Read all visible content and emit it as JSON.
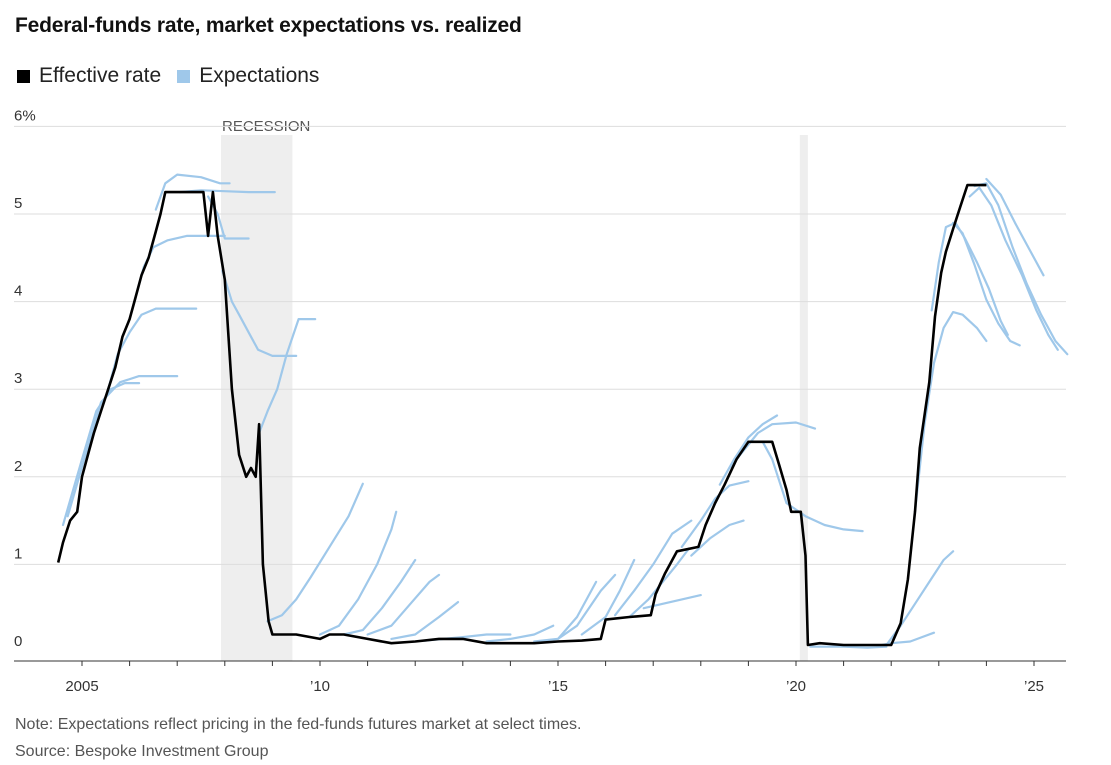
{
  "colors": {
    "effective": "#000000",
    "expectations": "#9fc8ea",
    "recession": "#eeeeee",
    "grid": "#dddddd"
  },
  "chart_data": {
    "type": "line",
    "title": "Federal-funds rate, market expectations vs. realized",
    "legend": [
      {
        "name": "Effective rate",
        "color": "#000000"
      },
      {
        "name": "Expectations",
        "color": "#9fc8ea"
      }
    ],
    "ylim": [
      0,
      6
    ],
    "xlim": [
      2004.0,
      2026.0
    ],
    "y_ticks": [
      0,
      1,
      2,
      3,
      4,
      5,
      6
    ],
    "y_tick_labels": [
      "0",
      "1",
      "2",
      "3",
      "4",
      "5",
      "6%"
    ],
    "x_ticks": [
      2005,
      2010,
      2015,
      2020,
      2025
    ],
    "x_tick_labels": [
      "2005",
      "’10",
      "’15",
      "’20",
      "’25"
    ],
    "recessions": [
      {
        "label": "RECESSION",
        "start": 2007.92,
        "end": 2009.42
      },
      {
        "label": "",
        "start": 2020.08,
        "end": 2020.25
      }
    ],
    "effective_rate": [
      [
        2004.5,
        1.02
      ],
      [
        2004.6,
        1.25
      ],
      [
        2004.75,
        1.5
      ],
      [
        2004.9,
        1.6
      ],
      [
        2005.0,
        2.0
      ],
      [
        2005.15,
        2.3
      ],
      [
        2005.25,
        2.5
      ],
      [
        2005.4,
        2.75
      ],
      [
        2005.55,
        3.0
      ],
      [
        2005.7,
        3.25
      ],
      [
        2005.85,
        3.6
      ],
      [
        2006.0,
        3.8
      ],
      [
        2006.1,
        4.0
      ],
      [
        2006.25,
        4.3
      ],
      [
        2006.4,
        4.5
      ],
      [
        2006.55,
        4.8
      ],
      [
        2006.65,
        5.0
      ],
      [
        2006.75,
        5.25
      ],
      [
        2007.0,
        5.25
      ],
      [
        2007.3,
        5.25
      ],
      [
        2007.55,
        5.25
      ],
      [
        2007.65,
        4.75
      ],
      [
        2007.75,
        5.25
      ],
      [
        2007.85,
        4.75
      ],
      [
        2008.0,
        4.25
      ],
      [
        2008.15,
        3.0
      ],
      [
        2008.3,
        2.25
      ],
      [
        2008.45,
        2.0
      ],
      [
        2008.55,
        2.1
      ],
      [
        2008.65,
        2.0
      ],
      [
        2008.72,
        2.6
      ],
      [
        2008.8,
        1.0
      ],
      [
        2008.92,
        0.35
      ],
      [
        2009.0,
        0.2
      ],
      [
        2009.5,
        0.2
      ],
      [
        2010.0,
        0.15
      ],
      [
        2010.2,
        0.2
      ],
      [
        2010.5,
        0.2
      ],
      [
        2011.0,
        0.15
      ],
      [
        2011.5,
        0.1
      ],
      [
        2012.0,
        0.12
      ],
      [
        2012.5,
        0.15
      ],
      [
        2013.0,
        0.15
      ],
      [
        2013.5,
        0.1
      ],
      [
        2014.0,
        0.1
      ],
      [
        2014.5,
        0.1
      ],
      [
        2015.0,
        0.12
      ],
      [
        2015.5,
        0.13
      ],
      [
        2015.9,
        0.15
      ],
      [
        2016.0,
        0.37
      ],
      [
        2016.5,
        0.4
      ],
      [
        2016.95,
        0.42
      ],
      [
        2017.05,
        0.66
      ],
      [
        2017.25,
        0.9
      ],
      [
        2017.5,
        1.15
      ],
      [
        2017.95,
        1.2
      ],
      [
        2018.1,
        1.45
      ],
      [
        2018.3,
        1.7
      ],
      [
        2018.5,
        1.91
      ],
      [
        2018.75,
        2.2
      ],
      [
        2019.0,
        2.4
      ],
      [
        2019.5,
        2.4
      ],
      [
        2019.65,
        2.13
      ],
      [
        2019.8,
        1.85
      ],
      [
        2019.9,
        1.6
      ],
      [
        2020.1,
        1.6
      ],
      [
        2020.2,
        1.1
      ],
      [
        2020.25,
        0.08
      ],
      [
        2020.5,
        0.1
      ],
      [
        2021.0,
        0.08
      ],
      [
        2021.5,
        0.08
      ],
      [
        2022.0,
        0.08
      ],
      [
        2022.2,
        0.33
      ],
      [
        2022.35,
        0.83
      ],
      [
        2022.5,
        1.6
      ],
      [
        2022.6,
        2.33
      ],
      [
        2022.8,
        3.08
      ],
      [
        2022.92,
        3.83
      ],
      [
        2023.05,
        4.33
      ],
      [
        2023.15,
        4.57
      ],
      [
        2023.3,
        4.83
      ],
      [
        2023.45,
        5.08
      ],
      [
        2023.6,
        5.33
      ],
      [
        2024.0,
        5.33
      ]
    ],
    "expectations": [
      [
        [
          2004.6,
          1.45
        ],
        [
          2005.0,
          2.2
        ],
        [
          2005.3,
          2.75
        ],
        [
          2005.6,
          3.0
        ],
        [
          2005.9,
          3.07
        ],
        [
          2006.2,
          3.07
        ]
      ],
      [
        [
          2004.7,
          1.55
        ],
        [
          2005.1,
          2.3
        ],
        [
          2005.4,
          2.85
        ],
        [
          2005.8,
          3.08
        ],
        [
          2006.2,
          3.15
        ],
        [
          2007.0,
          3.15
        ]
      ],
      [
        [
          2005.55,
          3.0
        ],
        [
          2005.75,
          3.4
        ],
        [
          2006.0,
          3.65
        ],
        [
          2006.25,
          3.85
        ],
        [
          2006.55,
          3.92
        ],
        [
          2007.4,
          3.92
        ]
      ],
      [
        [
          2006.1,
          4.0
        ],
        [
          2006.3,
          4.4
        ],
        [
          2006.5,
          4.62
        ],
        [
          2006.8,
          4.7
        ],
        [
          2007.2,
          4.75
        ],
        [
          2008.0,
          4.75
        ]
      ],
      [
        [
          2006.55,
          5.05
        ],
        [
          2006.75,
          5.35
        ],
        [
          2007.0,
          5.45
        ],
        [
          2007.5,
          5.42
        ],
        [
          2007.9,
          5.35
        ],
        [
          2008.1,
          5.35
        ]
      ],
      [
        [
          2007.05,
          5.25
        ],
        [
          2007.5,
          5.27
        ],
        [
          2008.0,
          5.26
        ],
        [
          2008.5,
          5.25
        ],
        [
          2009.05,
          5.25
        ]
      ],
      [
        [
          2007.65,
          5.2
        ],
        [
          2007.85,
          5.0
        ],
        [
          2008.0,
          4.72
        ],
        [
          2008.5,
          4.72
        ]
      ],
      [
        [
          2007.95,
          4.35
        ],
        [
          2008.15,
          4.0
        ],
        [
          2008.3,
          3.85
        ],
        [
          2008.5,
          3.65
        ],
        [
          2008.7,
          3.45
        ],
        [
          2009.0,
          3.38
        ],
        [
          2009.5,
          3.38
        ]
      ],
      [
        [
          2008.72,
          2.5
        ],
        [
          2008.9,
          2.75
        ],
        [
          2009.1,
          3.0
        ],
        [
          2009.3,
          3.4
        ],
        [
          2009.55,
          3.8
        ],
        [
          2009.9,
          3.8
        ]
      ],
      [
        [
          2008.9,
          0.35
        ],
        [
          2009.2,
          0.42
        ],
        [
          2009.5,
          0.6
        ],
        [
          2009.8,
          0.85
        ],
        [
          2010.2,
          1.2
        ],
        [
          2010.6,
          1.55
        ],
        [
          2010.9,
          1.92
        ]
      ],
      [
        [
          2010.0,
          0.2
        ],
        [
          2010.4,
          0.3
        ],
        [
          2010.8,
          0.6
        ],
        [
          2011.2,
          1.0
        ],
        [
          2011.5,
          1.4
        ],
        [
          2011.6,
          1.6
        ]
      ],
      [
        [
          2010.5,
          0.2
        ],
        [
          2010.9,
          0.25
        ],
        [
          2011.3,
          0.5
        ],
        [
          2011.7,
          0.8
        ],
        [
          2012.0,
          1.05
        ]
      ],
      [
        [
          2011.0,
          0.2
        ],
        [
          2011.5,
          0.3
        ],
        [
          2011.9,
          0.55
        ],
        [
          2012.3,
          0.8
        ],
        [
          2012.5,
          0.88
        ]
      ],
      [
        [
          2011.5,
          0.15
        ],
        [
          2012.0,
          0.2
        ],
        [
          2012.5,
          0.4
        ],
        [
          2012.9,
          0.57
        ]
      ],
      [
        [
          2012.2,
          0.13
        ],
        [
          2013.0,
          0.17
        ],
        [
          2013.5,
          0.2
        ],
        [
          2014.0,
          0.2
        ]
      ],
      [
        [
          2013.5,
          0.12
        ],
        [
          2014.0,
          0.15
        ],
        [
          2014.5,
          0.2
        ],
        [
          2014.9,
          0.3
        ]
      ],
      [
        [
          2014.5,
          0.12
        ],
        [
          2015.0,
          0.15
        ],
        [
          2015.4,
          0.4
        ],
        [
          2015.8,
          0.8
        ]
      ],
      [
        [
          2015.0,
          0.15
        ],
        [
          2015.4,
          0.3
        ],
        [
          2015.9,
          0.7
        ],
        [
          2016.2,
          0.88
        ]
      ],
      [
        [
          2015.5,
          0.2
        ],
        [
          2016.0,
          0.4
        ],
        [
          2016.3,
          0.7
        ],
        [
          2016.6,
          1.05
        ]
      ],
      [
        [
          2016.2,
          0.42
        ],
        [
          2016.6,
          0.7
        ],
        [
          2017.0,
          1.0
        ],
        [
          2017.4,
          1.35
        ],
        [
          2017.8,
          1.5
        ]
      ],
      [
        [
          2016.5,
          0.4
        ],
        [
          2016.9,
          0.6
        ],
        [
          2017.2,
          0.8
        ],
        [
          2017.5,
          1.0
        ],
        [
          2017.75,
          1.18
        ]
      ],
      [
        [
          2016.8,
          0.5
        ],
        [
          2017.2,
          0.55
        ],
        [
          2017.6,
          0.6
        ],
        [
          2018.0,
          0.65
        ]
      ],
      [
        [
          2017.6,
          1.2
        ],
        [
          2018.0,
          1.5
        ],
        [
          2018.3,
          1.75
        ],
        [
          2018.6,
          1.9
        ],
        [
          2019.0,
          1.95
        ]
      ],
      [
        [
          2017.8,
          1.1
        ],
        [
          2018.2,
          1.3
        ],
        [
          2018.6,
          1.45
        ],
        [
          2018.9,
          1.5
        ]
      ],
      [
        [
          2018.4,
          1.91
        ],
        [
          2018.7,
          2.2
        ],
        [
          2019.0,
          2.45
        ],
        [
          2019.3,
          2.6
        ],
        [
          2019.6,
          2.7
        ]
      ],
      [
        [
          2018.6,
          2.1
        ],
        [
          2018.9,
          2.3
        ],
        [
          2019.2,
          2.5
        ],
        [
          2019.5,
          2.6
        ],
        [
          2020.0,
          2.62
        ],
        [
          2020.4,
          2.55
        ]
      ],
      [
        [
          2019.3,
          2.4
        ],
        [
          2019.5,
          2.2
        ],
        [
          2019.8,
          1.7
        ],
        [
          2020.2,
          1.55
        ],
        [
          2020.6,
          1.45
        ],
        [
          2021.0,
          1.4
        ],
        [
          2021.4,
          1.38
        ]
      ],
      [
        [
          2020.3,
          0.06
        ],
        [
          2021.0,
          0.06
        ],
        [
          2021.5,
          0.05
        ],
        [
          2021.9,
          0.06
        ]
      ],
      [
        [
          2021.7,
          0.07
        ],
        [
          2022.0,
          0.1
        ],
        [
          2022.4,
          0.12
        ],
        [
          2022.9,
          0.22
        ]
      ],
      [
        [
          2021.9,
          0.08
        ],
        [
          2022.2,
          0.3
        ],
        [
          2022.5,
          0.55
        ],
        [
          2022.8,
          0.8
        ],
        [
          2023.1,
          1.05
        ],
        [
          2023.3,
          1.15
        ]
      ],
      [
        [
          2022.5,
          1.6
        ],
        [
          2022.7,
          2.6
        ],
        [
          2022.9,
          3.3
        ],
        [
          2023.1,
          3.7
        ],
        [
          2023.3,
          3.88
        ],
        [
          2023.5,
          3.85
        ],
        [
          2023.8,
          3.7
        ],
        [
          2024.0,
          3.55
        ]
      ],
      [
        [
          2022.85,
          3.9
        ],
        [
          2023.0,
          4.45
        ],
        [
          2023.15,
          4.85
        ],
        [
          2023.35,
          4.9
        ],
        [
          2023.55,
          4.72
        ],
        [
          2023.8,
          4.45
        ],
        [
          2024.05,
          4.15
        ],
        [
          2024.3,
          3.78
        ],
        [
          2024.45,
          3.62
        ]
      ],
      [
        [
          2023.3,
          4.9
        ],
        [
          2023.5,
          4.78
        ],
        [
          2023.75,
          4.42
        ],
        [
          2024.0,
          4.02
        ],
        [
          2024.25,
          3.75
        ],
        [
          2024.5,
          3.55
        ],
        [
          2024.7,
          3.5
        ]
      ],
      [
        [
          2023.65,
          5.2
        ],
        [
          2023.85,
          5.3
        ],
        [
          2024.1,
          5.1
        ],
        [
          2024.4,
          4.7
        ],
        [
          2024.75,
          4.3
        ],
        [
          2025.05,
          3.9
        ],
        [
          2025.3,
          3.62
        ],
        [
          2025.5,
          3.45
        ]
      ],
      [
        [
          2023.75,
          5.32
        ],
        [
          2024.0,
          5.35
        ],
        [
          2024.25,
          5.1
        ],
        [
          2024.55,
          4.62
        ],
        [
          2024.85,
          4.2
        ],
        [
          2025.15,
          3.85
        ],
        [
          2025.45,
          3.55
        ],
        [
          2025.7,
          3.4
        ]
      ],
      [
        [
          2024.0,
          5.4
        ],
        [
          2024.3,
          5.22
        ],
        [
          2024.6,
          4.9
        ],
        [
          2024.9,
          4.6
        ],
        [
          2025.2,
          4.3
        ]
      ]
    ],
    "note": "Note: Expectations reflect pricing in the fed-funds futures market at select times.",
    "source": "Source: Bespoke Investment Group"
  }
}
